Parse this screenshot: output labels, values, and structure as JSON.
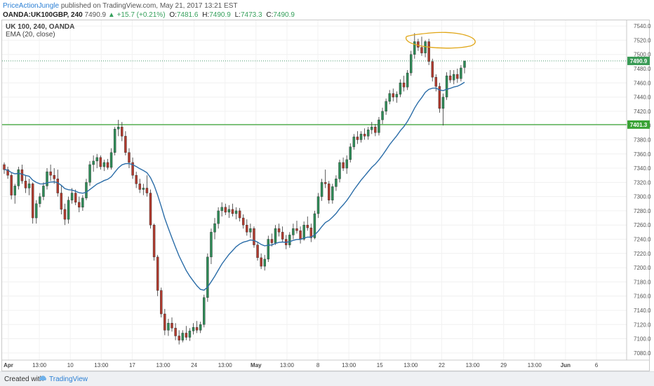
{
  "header": {
    "author": "PriceActionJungle",
    "published": "published on TradingView.com, May 21, 2017 13:21 EST",
    "symbol": "OANDA:UK100GBP, 240",
    "last": "7490.9",
    "change": "▲ +15.7 (+0.21%)",
    "o_label": "O:",
    "o": "7481.6",
    "h_label": "H:",
    "h": "7490.9",
    "l_label": "L:",
    "l": "7473.3",
    "c_label": "C:",
    "c": "7490.9"
  },
  "legend": {
    "title": "UK 100, 240, OANDA",
    "indicator": "EMA (20, close)"
  },
  "footer": {
    "created": "Created with",
    "brand": "TradingView"
  },
  "colors": {
    "up": "#2e8b57",
    "down": "#b03a2e",
    "ema": "#2b6da8",
    "level": "#3aa335",
    "highlight": "#e0a514"
  },
  "chart_data": {
    "type": "candlestick",
    "title": "UK 100, 240, OANDA",
    "ylim": [
      7070,
      7548
    ],
    "y_ticks": [
      "7540.0",
      "7520.0",
      "7500.0",
      "7480.0",
      "7460.0",
      "7440.0",
      "7420.0",
      "7400.0",
      "7380.0",
      "7360.0",
      "7340.0",
      "7320.0",
      "7300.0",
      "7280.0",
      "7260.0",
      "7240.0",
      "7220.0",
      "7200.0",
      "7180.0",
      "7160.0",
      "7140.0",
      "7120.0",
      "7100.0",
      "7080.0"
    ],
    "x_ticks": [
      "Apr",
      "13:00",
      "10",
      "13:00",
      "17",
      "13:00",
      "24",
      "13:00",
      "May",
      "13:00",
      "8",
      "13:00",
      "15",
      "13:00",
      "22",
      "13:00",
      "29",
      "13:00",
      "Jun",
      "6"
    ],
    "current_price": "7490.9",
    "level": "7401.3",
    "level_value": 7401.3,
    "ema_period": 20,
    "candles": [
      [
        7345,
        7348,
        7332,
        7338
      ],
      [
        7338,
        7342,
        7325,
        7330
      ],
      [
        7330,
        7333,
        7296,
        7302
      ],
      [
        7302,
        7318,
        7290,
        7315
      ],
      [
        7315,
        7342,
        7310,
        7338
      ],
      [
        7338,
        7345,
        7318,
        7322
      ],
      [
        7322,
        7330,
        7305,
        7312
      ],
      [
        7312,
        7325,
        7302,
        7318
      ],
      [
        7318,
        7320,
        7262,
        7270
      ],
      [
        7270,
        7295,
        7262,
        7290
      ],
      [
        7290,
        7305,
        7285,
        7300
      ],
      [
        7300,
        7320,
        7295,
        7315
      ],
      [
        7315,
        7340,
        7310,
        7335
      ],
      [
        7335,
        7345,
        7322,
        7330
      ],
      [
        7330,
        7340,
        7318,
        7325
      ],
      [
        7325,
        7338,
        7300,
        7305
      ],
      [
        7305,
        7315,
        7275,
        7282
      ],
      [
        7282,
        7290,
        7260,
        7268
      ],
      [
        7268,
        7300,
        7262,
        7295
      ],
      [
        7295,
        7312,
        7290,
        7305
      ],
      [
        7305,
        7310,
        7288,
        7292
      ],
      [
        7292,
        7300,
        7278,
        7285
      ],
      [
        7285,
        7302,
        7280,
        7298
      ],
      [
        7298,
        7325,
        7295,
        7320
      ],
      [
        7320,
        7350,
        7315,
        7345
      ],
      [
        7345,
        7358,
        7335,
        7350
      ],
      [
        7350,
        7360,
        7340,
        7355
      ],
      [
        7355,
        7358,
        7338,
        7342
      ],
      [
        7342,
        7352,
        7336,
        7348
      ],
      [
        7348,
        7353,
        7338,
        7341
      ],
      [
        7341,
        7368,
        7338,
        7362
      ],
      [
        7362,
        7398,
        7358,
        7395
      ],
      [
        7395,
        7408,
        7385,
        7398
      ],
      [
        7398,
        7405,
        7378,
        7385
      ],
      [
        7385,
        7392,
        7358,
        7362
      ],
      [
        7362,
        7368,
        7340,
        7348
      ],
      [
        7348,
        7355,
        7325,
        7330
      ],
      [
        7330,
        7335,
        7312,
        7318
      ],
      [
        7318,
        7325,
        7305,
        7310
      ],
      [
        7310,
        7318,
        7302,
        7312
      ],
      [
        7312,
        7330,
        7300,
        7305
      ],
      [
        7305,
        7310,
        7255,
        7260
      ],
      [
        7260,
        7262,
        7210,
        7215
      ],
      [
        7215,
        7218,
        7160,
        7168
      ],
      [
        7168,
        7172,
        7130,
        7135
      ],
      [
        7135,
        7142,
        7105,
        7112
      ],
      [
        7112,
        7128,
        7104,
        7122
      ],
      [
        7122,
        7130,
        7110,
        7115
      ],
      [
        7115,
        7122,
        7098,
        7104
      ],
      [
        7104,
        7112,
        7092,
        7098
      ],
      [
        7098,
        7112,
        7095,
        7108
      ],
      [
        7108,
        7118,
        7098,
        7102
      ],
      [
        7102,
        7115,
        7097,
        7111
      ],
      [
        7111,
        7122,
        7106,
        7116
      ],
      [
        7116,
        7125,
        7108,
        7112
      ],
      [
        7112,
        7124,
        7108,
        7120
      ],
      [
        7120,
        7162,
        7116,
        7158
      ],
      [
        7158,
        7220,
        7152,
        7215
      ],
      [
        7215,
        7255,
        7205,
        7250
      ],
      [
        7250,
        7270,
        7240,
        7262
      ],
      [
        7262,
        7285,
        7255,
        7280
      ],
      [
        7280,
        7292,
        7272,
        7285
      ],
      [
        7285,
        7290,
        7274,
        7278
      ],
      [
        7278,
        7288,
        7270,
        7282
      ],
      [
        7282,
        7290,
        7272,
        7276
      ],
      [
        7276,
        7285,
        7268,
        7280
      ],
      [
        7280,
        7284,
        7265,
        7270
      ],
      [
        7270,
        7275,
        7255,
        7260
      ],
      [
        7260,
        7268,
        7245,
        7250
      ],
      [
        7250,
        7262,
        7242,
        7255
      ],
      [
        7255,
        7258,
        7228,
        7232
      ],
      [
        7232,
        7236,
        7210,
        7214
      ],
      [
        7214,
        7220,
        7198,
        7202
      ],
      [
        7202,
        7218,
        7196,
        7212
      ],
      [
        7212,
        7245,
        7208,
        7240
      ],
      [
        7240,
        7248,
        7230,
        7235
      ],
      [
        7235,
        7260,
        7232,
        7255
      ],
      [
        7255,
        7262,
        7244,
        7250
      ],
      [
        7250,
        7258,
        7236,
        7240
      ],
      [
        7240,
        7246,
        7226,
        7232
      ],
      [
        7232,
        7250,
        7228,
        7246
      ],
      [
        7246,
        7262,
        7240,
        7255
      ],
      [
        7255,
        7266,
        7248,
        7252
      ],
      [
        7252,
        7258,
        7234,
        7240
      ],
      [
        7240,
        7265,
        7238,
        7260
      ],
      [
        7260,
        7272,
        7252,
        7256
      ],
      [
        7256,
        7262,
        7236,
        7242
      ],
      [
        7242,
        7280,
        7240,
        7276
      ],
      [
        7276,
        7305,
        7270,
        7300
      ],
      [
        7300,
        7325,
        7294,
        7320
      ],
      [
        7320,
        7338,
        7312,
        7318
      ],
      [
        7318,
        7322,
        7290,
        7295
      ],
      [
        7295,
        7318,
        7290,
        7314
      ],
      [
        7314,
        7330,
        7308,
        7325
      ],
      [
        7325,
        7352,
        7320,
        7348
      ],
      [
        7348,
        7355,
        7336,
        7340
      ],
      [
        7340,
        7358,
        7332,
        7352
      ],
      [
        7352,
        7375,
        7348,
        7370
      ],
      [
        7370,
        7388,
        7366,
        7384
      ],
      [
        7384,
        7392,
        7374,
        7380
      ],
      [
        7380,
        7392,
        7376,
        7388
      ],
      [
        7388,
        7396,
        7380,
        7385
      ],
      [
        7385,
        7398,
        7380,
        7394
      ],
      [
        7394,
        7405,
        7388,
        7398
      ],
      [
        7398,
        7402,
        7385,
        7390
      ],
      [
        7390,
        7412,
        7386,
        7408
      ],
      [
        7408,
        7425,
        7402,
        7420
      ],
      [
        7420,
        7438,
        7415,
        7434
      ],
      [
        7434,
        7450,
        7430,
        7445
      ],
      [
        7445,
        7452,
        7434,
        7440
      ],
      [
        7440,
        7448,
        7432,
        7444
      ],
      [
        7444,
        7465,
        7440,
        7460
      ],
      [
        7460,
        7470,
        7448,
        7454
      ],
      [
        7454,
        7478,
        7450,
        7474
      ],
      [
        7474,
        7505,
        7470,
        7500
      ],
      [
        7500,
        7530,
        7494,
        7518
      ],
      [
        7518,
        7522,
        7505,
        7510
      ],
      [
        7510,
        7525,
        7498,
        7502
      ],
      [
        7502,
        7520,
        7496,
        7518
      ],
      [
        7518,
        7522,
        7485,
        7490
      ],
      [
        7490,
        7494,
        7462,
        7468
      ],
      [
        7468,
        7472,
        7448,
        7455
      ],
      [
        7455,
        7460,
        7418,
        7424
      ],
      [
        7424,
        7445,
        7400,
        7440
      ],
      [
        7440,
        7475,
        7436,
        7470
      ],
      [
        7470,
        7478,
        7460,
        7464
      ],
      [
        7464,
        7478,
        7458,
        7472
      ],
      [
        7472,
        7480,
        7460,
        7466
      ],
      [
        7466,
        7485,
        7462,
        7481
      ],
      [
        7481.6,
        7490.9,
        7473.3,
        7490.9
      ]
    ]
  }
}
